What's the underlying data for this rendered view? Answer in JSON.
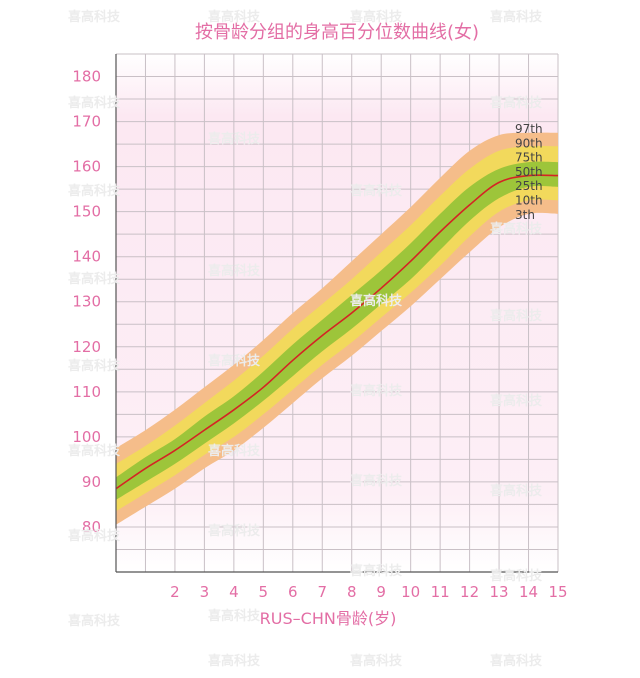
{
  "watermark": "喜高科技",
  "chart_data": {
    "type": "line",
    "title": "按骨龄分组的身高百分位数曲线(女)",
    "xlabel": "RUS–CHN骨龄(岁)",
    "ylabel": "",
    "xlim": [
      0,
      15
    ],
    "ylim": [
      70,
      185
    ],
    "xticks": [
      2,
      3,
      4,
      5,
      6,
      7,
      8,
      9,
      10,
      11,
      12,
      13,
      14,
      15
    ],
    "yticks": [
      80,
      90,
      100,
      110,
      120,
      130,
      140,
      150,
      160,
      170,
      180
    ],
    "grid": true,
    "band_colors": {
      "outer": "#f5bd8a",
      "middle": "#f2d95c",
      "inner": "#9dc53a",
      "median_line": "#d42424"
    },
    "x": [
      0,
      1,
      2,
      3,
      4,
      5,
      6,
      7,
      8,
      9,
      10,
      11,
      12,
      13,
      14,
      15
    ],
    "series": [
      {
        "name": "3th",
        "values": [
          80.5,
          84.5,
          88.5,
          93.0,
          97.0,
          102.0,
          107.5,
          113.0,
          118.0,
          123.5,
          129.0,
          135.0,
          141.0,
          146.5,
          149.5,
          149.5
        ]
      },
      {
        "name": "10th",
        "values": [
          83.5,
          87.5,
          91.5,
          96.0,
          100.0,
          105.0,
          110.5,
          116.0,
          121.0,
          126.5,
          132.0,
          138.0,
          144.5,
          150.0,
          152.5,
          152.5
        ]
      },
      {
        "name": "25th",
        "values": [
          86.0,
          90.0,
          94.0,
          98.5,
          103.0,
          108.0,
          113.5,
          119.0,
          124.0,
          129.5,
          135.0,
          141.5,
          148.0,
          153.0,
          155.5,
          155.5
        ]
      },
      {
        "name": "50th",
        "values": [
          88.5,
          93.0,
          97.0,
          101.5,
          106.0,
          111.0,
          117.0,
          122.5,
          127.5,
          133.0,
          139.0,
          145.5,
          151.5,
          156.5,
          158.0,
          158.0
        ]
      },
      {
        "name": "75th",
        "values": [
          91.0,
          95.5,
          99.5,
          104.5,
          109.0,
          114.5,
          120.5,
          126.0,
          131.5,
          137.0,
          143.0,
          149.5,
          155.5,
          159.5,
          161.0,
          161.0
        ]
      },
      {
        "name": "90th",
        "values": [
          94.0,
          98.0,
          102.5,
          107.5,
          112.5,
          118.0,
          124.0,
          129.5,
          135.0,
          141.0,
          147.0,
          153.5,
          159.5,
          163.5,
          164.5,
          164.5
        ]
      },
      {
        "name": "97th",
        "values": [
          97.5,
          101.5,
          106.0,
          111.0,
          116.0,
          121.5,
          127.5,
          133.0,
          139.0,
          145.0,
          151.0,
          157.5,
          163.5,
          167.0,
          167.5,
          167.5
        ]
      }
    ]
  }
}
